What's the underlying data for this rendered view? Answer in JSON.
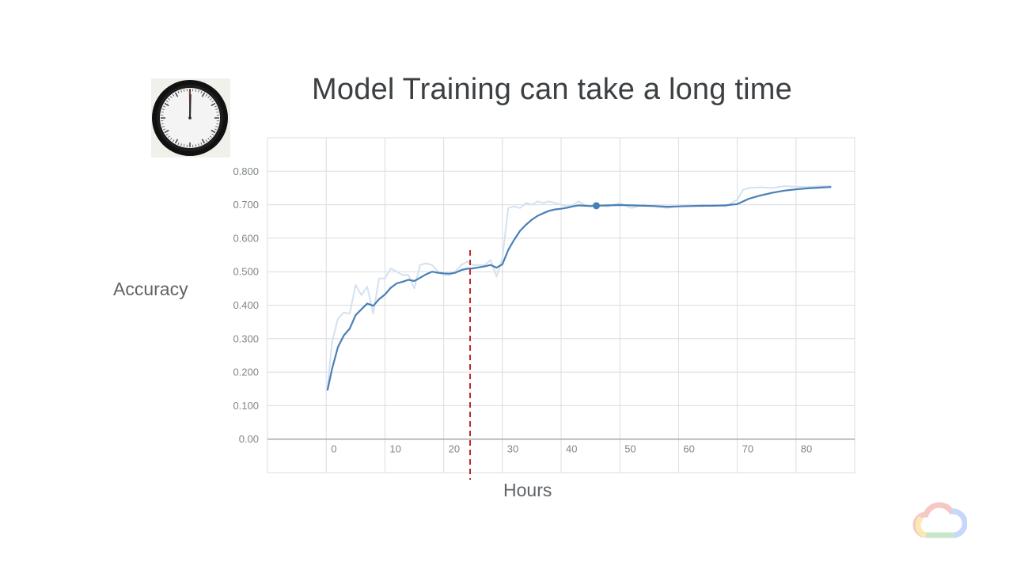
{
  "slide": {
    "title": "Model Training can take a long time"
  },
  "icons": {
    "clock": "clock-icon",
    "logo": "google-cloud-logo-icon"
  },
  "colors": {
    "line": "#4a7fb5",
    "raw_line": "#d3e1f1",
    "marker_line": "#c0282e",
    "grid": "#dadce0"
  },
  "chart_data": {
    "type": "line",
    "title": "",
    "xlabel": "Hours",
    "ylabel": "Accuracy",
    "xlim": [
      -10,
      90
    ],
    "ylim": [
      -0.1,
      0.9
    ],
    "xticks": [
      0,
      10,
      20,
      30,
      40,
      50,
      60,
      70,
      80
    ],
    "xtick_labels": [
      "0",
      "10",
      "20",
      "30",
      "40",
      "50",
      "60",
      "70",
      "80"
    ],
    "yticks": [
      0,
      0.1,
      0.2,
      0.3,
      0.4,
      0.5,
      0.6,
      0.7,
      0.8
    ],
    "ytick_labels": [
      "0.00",
      "0.100",
      "0.200",
      "0.300",
      "0.400",
      "0.500",
      "0.600",
      "0.700",
      "0.800"
    ],
    "grid": true,
    "vertical_marker_x": 24.5,
    "highlight_point": {
      "x": 46,
      "y": 0.697
    },
    "series": [
      {
        "x": [
          0.2,
          1,
          2,
          3,
          4,
          5,
          6,
          7,
          8,
          9,
          10,
          11,
          12,
          13,
          14,
          15,
          16,
          17,
          18,
          19,
          20,
          21,
          22,
          23,
          24,
          25,
          26,
          27,
          28,
          29,
          30,
          31,
          32,
          33,
          34,
          35,
          36,
          37,
          38,
          39,
          40,
          41,
          42,
          43,
          44,
          45,
          46,
          48,
          50,
          52,
          54,
          56,
          58,
          60,
          62,
          64,
          66,
          68,
          70,
          71,
          72,
          74,
          76,
          78,
          80,
          82,
          84,
          86
        ],
        "y": [
          0.145,
          0.21,
          0.275,
          0.31,
          0.33,
          0.37,
          0.388,
          0.405,
          0.398,
          0.418,
          0.432,
          0.452,
          0.465,
          0.47,
          0.476,
          0.472,
          0.482,
          0.492,
          0.5,
          0.497,
          0.495,
          0.494,
          0.497,
          0.505,
          0.509,
          0.51,
          0.513,
          0.516,
          0.52,
          0.512,
          0.522,
          0.565,
          0.595,
          0.622,
          0.64,
          0.655,
          0.667,
          0.675,
          0.682,
          0.686,
          0.688,
          0.691,
          0.695,
          0.698,
          0.697,
          0.696,
          0.697,
          0.698,
          0.699,
          0.698,
          0.697,
          0.696,
          0.694,
          0.695,
          0.696,
          0.697,
          0.697,
          0.698,
          0.702,
          0.71,
          0.718,
          0.728,
          0.736,
          0.742,
          0.746,
          0.749,
          0.751,
          0.753
        ]
      },
      {
        "x": [
          0.2,
          1,
          2,
          3,
          4,
          5,
          6,
          7,
          8,
          9,
          10,
          11,
          12,
          13,
          14,
          15,
          16,
          17,
          18,
          19,
          20,
          21,
          22,
          23,
          24,
          25,
          26,
          27,
          28,
          29,
          30,
          31,
          32,
          33,
          34,
          35,
          36,
          37,
          38,
          39,
          40,
          41,
          42,
          43,
          44,
          45,
          46,
          48,
          50,
          52,
          54,
          56,
          58,
          60,
          62,
          64,
          66,
          68,
          70,
          71,
          72,
          74,
          76,
          78,
          80,
          82,
          84,
          86
        ],
        "y": [
          0.15,
          0.29,
          0.36,
          0.378,
          0.375,
          0.46,
          0.43,
          0.455,
          0.375,
          0.48,
          0.48,
          0.51,
          0.5,
          0.49,
          0.49,
          0.45,
          0.52,
          0.525,
          0.52,
          0.5,
          0.49,
          0.49,
          0.5,
          0.52,
          0.53,
          0.52,
          0.52,
          0.52,
          0.535,
          0.485,
          0.54,
          0.69,
          0.695,
          0.69,
          0.705,
          0.7,
          0.71,
          0.705,
          0.71,
          0.705,
          0.7,
          0.695,
          0.7,
          0.71,
          0.7,
          0.695,
          0.7,
          0.695,
          0.705,
          0.69,
          0.7,
          0.695,
          0.69,
          0.695,
          0.7,
          0.695,
          0.7,
          0.695,
          0.715,
          0.745,
          0.75,
          0.752,
          0.75,
          0.755,
          0.754,
          0.753,
          0.755,
          0.755
        ]
      }
    ]
  }
}
